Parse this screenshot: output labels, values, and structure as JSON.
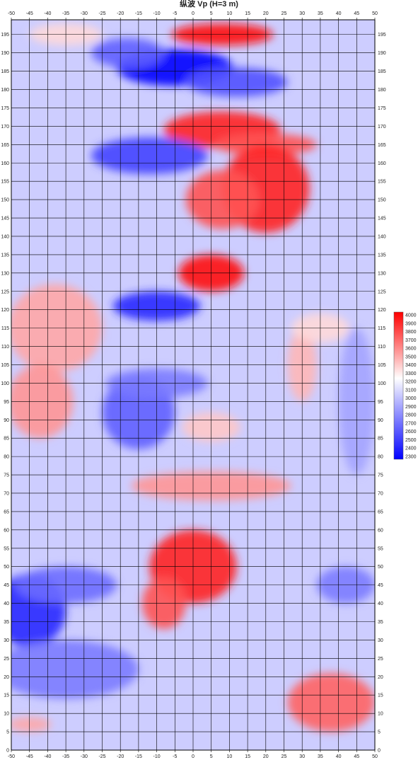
{
  "chart_data": {
    "type": "heatmap",
    "title": "纵波 Vp (H=3 m)",
    "xlim": [
      -50,
      50
    ],
    "ylim": [
      0,
      199
    ],
    "x_ticks": [
      "-50",
      "-45",
      "-40",
      "-35",
      "-30",
      "-25",
      "-20",
      "-15",
      "-10",
      "-5",
      "0",
      "5",
      "10",
      "15",
      "20",
      "25",
      "30",
      "35",
      "40",
      "45",
      "50"
    ],
    "y_ticks": [
      "0",
      "5",
      "10",
      "15",
      "20",
      "25",
      "30",
      "35",
      "40",
      "45",
      "50",
      "55",
      "60",
      "65",
      "70",
      "75",
      "80",
      "85",
      "90",
      "95",
      "100",
      "105",
      "110",
      "115",
      "120",
      "125",
      "130",
      "135",
      "140",
      "145",
      "150",
      "155",
      "160",
      "165",
      "170",
      "175",
      "180",
      "185",
      "190",
      "195"
    ],
    "grid": true,
    "colorbar": {
      "position": "right",
      "min": 2300,
      "max": 4000,
      "labels": [
        "4000",
        "3900",
        "3800",
        "3700",
        "3600",
        "3500",
        "3400",
        "3300",
        "3200",
        "3100",
        "3000",
        "2900",
        "2800",
        "2700",
        "2600",
        "2500",
        "2400",
        "2300"
      ],
      "low_color": "#0000ff",
      "mid_color": "#ffffff",
      "high_color": "#ff0000"
    },
    "background_value": 3050,
    "anomalies": [
      {
        "x": 8,
        "y": 195,
        "rx": 14,
        "ry": 3,
        "value": 3950
      },
      {
        "x": -5,
        "y": 186,
        "rx": 16,
        "ry": 5,
        "value": 2300
      },
      {
        "x": 12,
        "y": 182,
        "rx": 14,
        "ry": 4,
        "value": 2600
      },
      {
        "x": -18,
        "y": 190,
        "rx": 10,
        "ry": 4,
        "value": 2650
      },
      {
        "x": 8,
        "y": 169,
        "rx": 16,
        "ry": 5,
        "value": 3900
      },
      {
        "x": 20,
        "y": 165,
        "rx": 14,
        "ry": 3,
        "value": 3750
      },
      {
        "x": -12,
        "y": 162,
        "rx": 16,
        "ry": 5,
        "value": 2550
      },
      {
        "x": 20,
        "y": 153,
        "rx": 12,
        "ry": 12,
        "value": 3900
      },
      {
        "x": 8,
        "y": 150,
        "rx": 10,
        "ry": 8,
        "value": 3750
      },
      {
        "x": 5,
        "y": 130,
        "rx": 9,
        "ry": 5,
        "value": 3950
      },
      {
        "x": -10,
        "y": 121,
        "rx": 12,
        "ry": 4,
        "value": 2450
      },
      {
        "x": -38,
        "y": 115,
        "rx": 13,
        "ry": 12,
        "value": 3500
      },
      {
        "x": -42,
        "y": 95,
        "rx": 9,
        "ry": 10,
        "value": 3550
      },
      {
        "x": -15,
        "y": 92,
        "rx": 10,
        "ry": 10,
        "value": 2650
      },
      {
        "x": -10,
        "y": 100,
        "rx": 14,
        "ry": 4,
        "value": 2750
      },
      {
        "x": 30,
        "y": 105,
        "rx": 4,
        "ry": 10,
        "value": 3450
      },
      {
        "x": 5,
        "y": 88,
        "rx": 8,
        "ry": 4,
        "value": 3400
      },
      {
        "x": 5,
        "y": 72,
        "rx": 22,
        "ry": 4,
        "value": 3550
      },
      {
        "x": 0,
        "y": 50,
        "rx": 12,
        "ry": 10,
        "value": 3900
      },
      {
        "x": -8,
        "y": 40,
        "rx": 6,
        "ry": 7,
        "value": 3750
      },
      {
        "x": -45,
        "y": 38,
        "rx": 10,
        "ry": 10,
        "value": 2450
      },
      {
        "x": -35,
        "y": 45,
        "rx": 14,
        "ry": 5,
        "value": 2700
      },
      {
        "x": 42,
        "y": 45,
        "rx": 8,
        "ry": 5,
        "value": 2750
      },
      {
        "x": -35,
        "y": 22,
        "rx": 20,
        "ry": 8,
        "value": 2750
      },
      {
        "x": 38,
        "y": 13,
        "rx": 12,
        "ry": 8,
        "value": 3700
      },
      {
        "x": -45,
        "y": 7,
        "rx": 6,
        "ry": 2,
        "value": 3500
      },
      {
        "x": 35,
        "y": 115,
        "rx": 8,
        "ry": 4,
        "value": 3350
      },
      {
        "x": -35,
        "y": 195,
        "rx": 10,
        "ry": 3,
        "value": 3350
      },
      {
        "x": 45,
        "y": 95,
        "rx": 5,
        "ry": 20,
        "value": 2900
      }
    ]
  }
}
